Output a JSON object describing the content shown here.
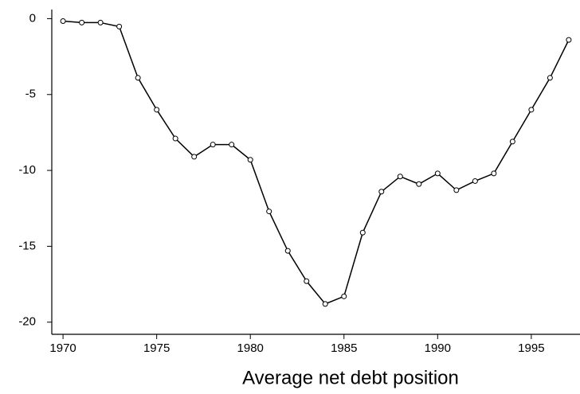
{
  "chart_data": {
    "type": "line",
    "xlabel": "Average net debt position",
    "x": [
      1970,
      1971,
      1972,
      1973,
      1974,
      1975,
      1976,
      1977,
      1978,
      1979,
      1980,
      1981,
      1982,
      1983,
      1984,
      1985,
      1986,
      1987,
      1988,
      1989,
      1990,
      1991,
      1992,
      1993,
      1994,
      1995,
      1996,
      1997
    ],
    "series": [
      {
        "color": "#000000",
        "values": [
          -0.16,
          -0.26,
          -0.26,
          -0.52,
          -3.9,
          -6.0,
          -7.9,
          -9.1,
          -8.3,
          -8.3,
          -9.3,
          -12.7,
          -15.3,
          -17.3,
          -18.8,
          -18.3,
          -14.1,
          -11.4,
          -10.4,
          -10.9,
          -10.2,
          -11.3,
          -10.7,
          -10.2,
          -8.1,
          -6.0,
          -3.9,
          -1.4
        ]
      }
    ],
    "xlim": [
      1969.4,
      1997.6
    ],
    "xticks": [
      1970,
      1975,
      1980,
      1985,
      1990,
      1995
    ],
    "ylim": [
      -20.8,
      0.6
    ],
    "yticks": [
      0,
      -5,
      -10,
      -15,
      -20
    ]
  }
}
